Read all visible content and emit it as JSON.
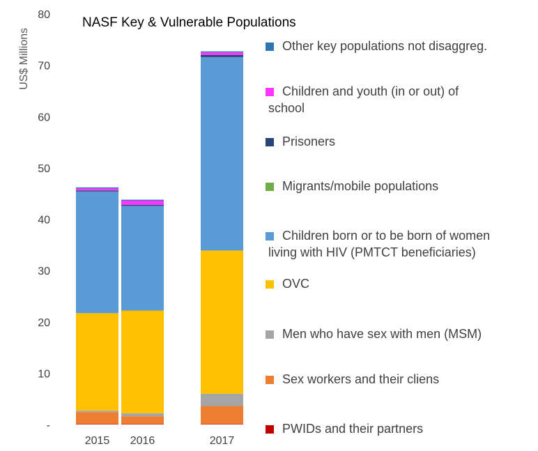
{
  "chart_data": {
    "type": "bar",
    "stacked": true,
    "title": "NASF Key & Vulnerable Populations",
    "xlabel": "",
    "ylabel": "US$ Millions",
    "ylim": [
      0,
      80
    ],
    "yticks": [
      0,
      10,
      20,
      30,
      40,
      50,
      60,
      70,
      80
    ],
    "ytick_labels": [
      "-",
      "10",
      "20",
      "30",
      "40",
      "50",
      "60",
      "70",
      "80"
    ],
    "grid": false,
    "legend_position": "right",
    "categories": [
      "2015",
      "2016",
      "2017"
    ],
    "series": [
      {
        "name": "PWIDs and their partners",
        "color": "#C00000",
        "values": [
          0.1,
          0.1,
          0.1
        ]
      },
      {
        "name": "Sex workers and their cliens",
        "color": "#ED7D31",
        "values": [
          2.3,
          1.5,
          3.5
        ]
      },
      {
        "name": "Men who have sex with men (MSM)",
        "color": "#A5A5A5",
        "values": [
          0.3,
          0.6,
          2.4
        ]
      },
      {
        "name": "OVC",
        "color": "#FFC000",
        "values": [
          19.0,
          20.0,
          27.9
        ]
      },
      {
        "name": "Children born or to be born of women living with HIV (PMTCT beneficiaries)",
        "color": "#5B9BD5",
        "values": [
          23.7,
          20.4,
          37.7
        ]
      },
      {
        "name": "Migrants/mobile populations",
        "color": "#70AD47",
        "values": [
          0.0,
          0.0,
          0.0
        ]
      },
      {
        "name": "Prisoners",
        "color": "#264478",
        "values": [
          0.2,
          0.2,
          0.4
        ]
      },
      {
        "name": "Children and youth (in or out) of school",
        "color": "#FF33FF",
        "values": [
          0.4,
          0.8,
          0.5
        ]
      },
      {
        "name": "Other key populations not disaggreg.",
        "color": "#2E75B6",
        "values": [
          0.2,
          0.2,
          0.2
        ]
      }
    ],
    "legend": [
      {
        "lines": [
          "Other key populations not disaggreg."
        ],
        "color": "#2E75B6"
      },
      {
        "lines": [
          "Children and youth (in or out) of",
          "school"
        ],
        "color": "#FF33FF"
      },
      {
        "lines": [
          "Prisoners"
        ],
        "color": "#264478"
      },
      {
        "lines": [
          "Migrants/mobile populations"
        ],
        "color": "#70AD47"
      },
      {
        "lines": [
          "Children born or to be born of women",
          "living with HIV (PMTCT beneficiaries)"
        ],
        "color": "#5B9BD5"
      },
      {
        "lines": [
          "OVC"
        ],
        "color": "#FFC000"
      },
      {
        "lines": [
          "Men who have sex with men (MSM)"
        ],
        "color": "#A5A5A5"
      },
      {
        "lines": [
          "Sex workers and their cliens"
        ],
        "color": "#ED7D31"
      },
      {
        "lines": [
          "PWIDs and their partners"
        ],
        "color": "#C00000"
      }
    ]
  }
}
